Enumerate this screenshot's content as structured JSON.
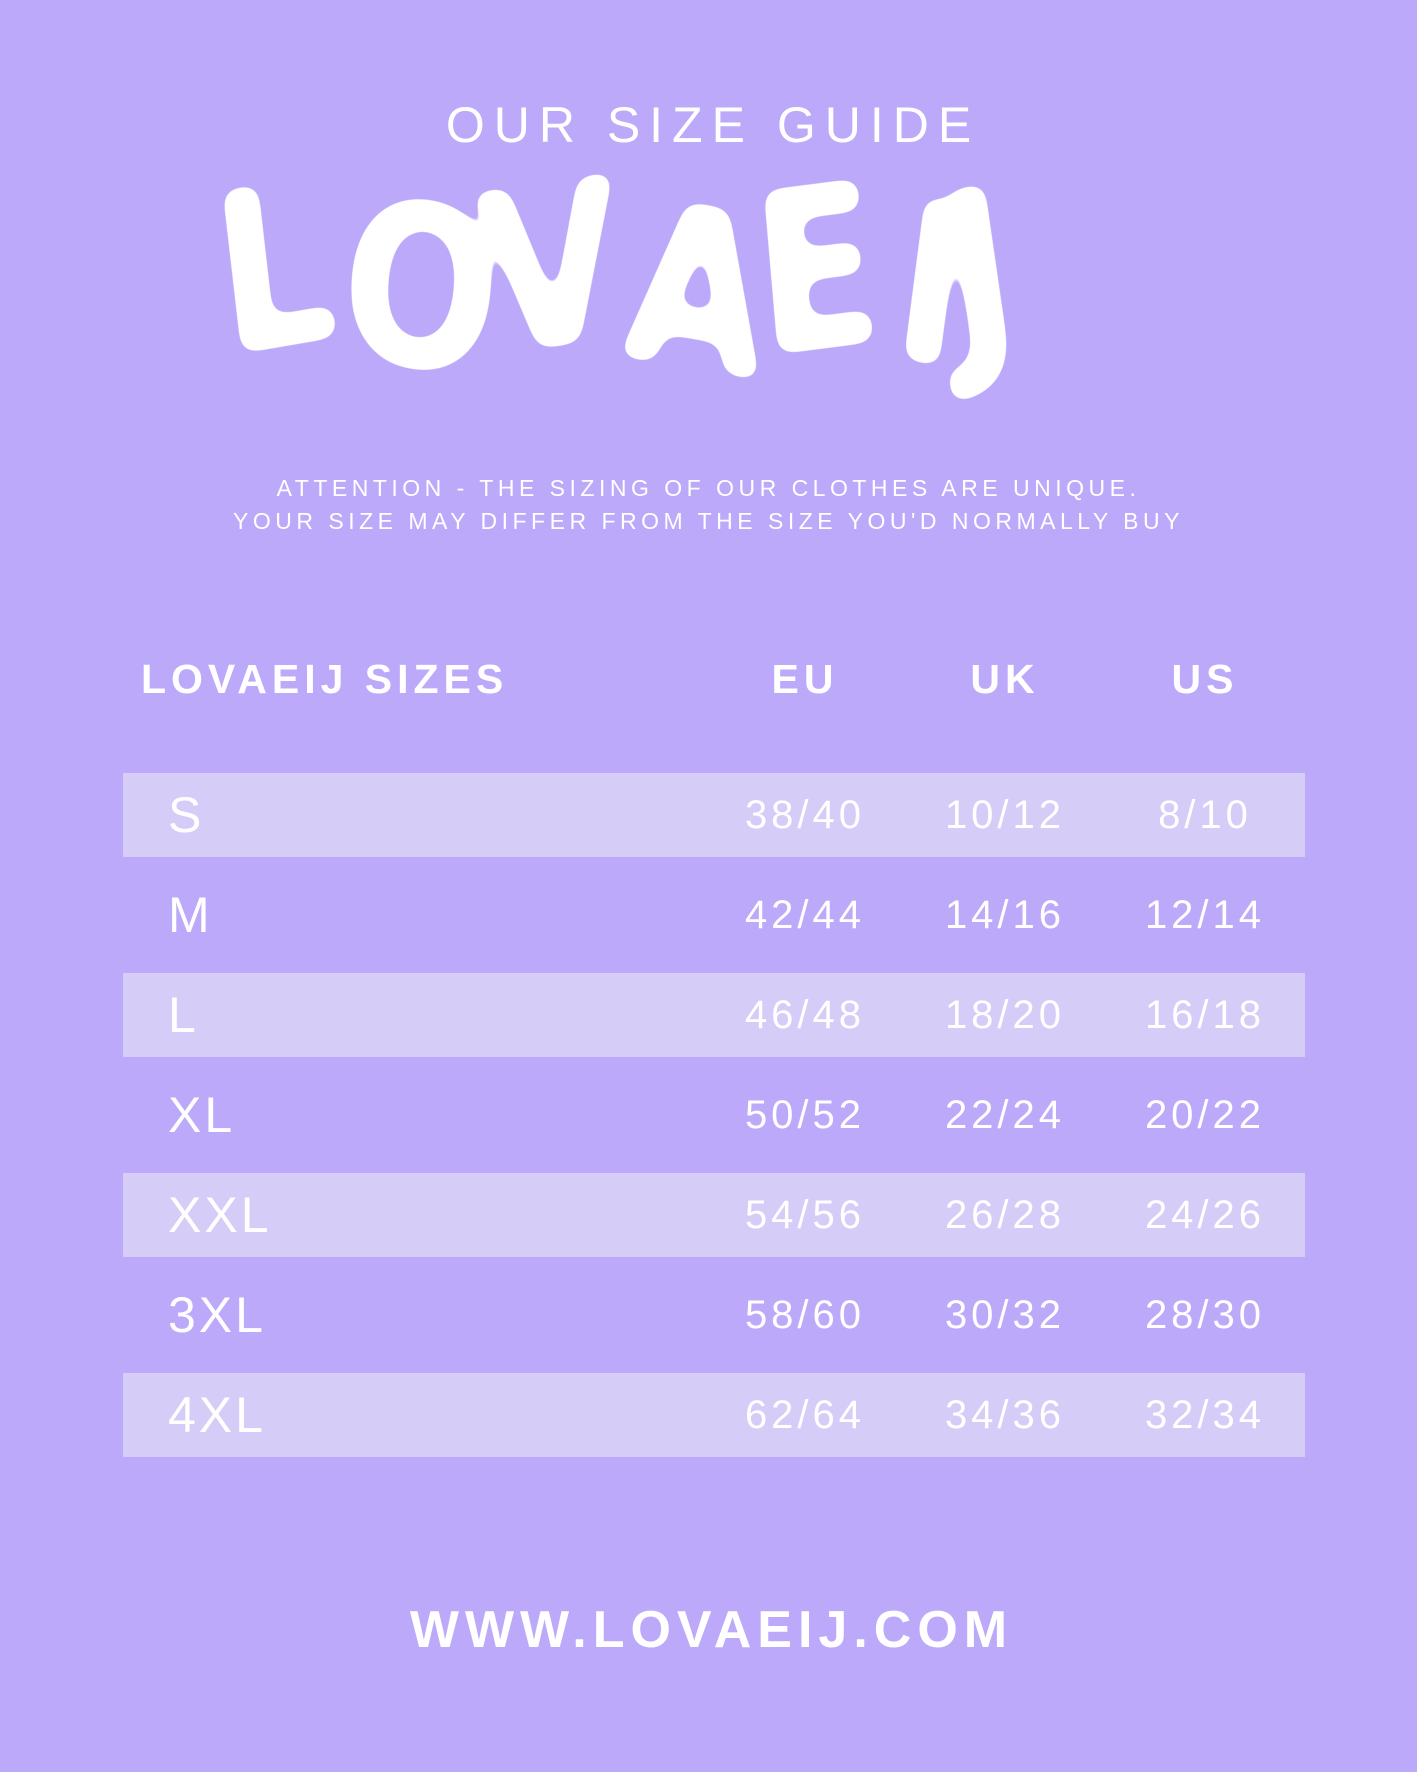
{
  "page": {
    "title": "OUR SIZE GUIDE",
    "logo_text": "LOVAEIJ",
    "attention_line1": "ATTENTION - THE SIZING OF OUR CLOTHES ARE UNIQUE.",
    "attention_line2": "YOUR SIZE MAY DIFFER FROM THE SIZE YOU'D NORMALLY BUY",
    "footer_url": "WWW.LOVAEIJ.COM"
  },
  "colors": {
    "background": "#bca9f9",
    "row_band": "#d6ccf8",
    "text": "#ffffff"
  },
  "size_table": {
    "headers": [
      "LOVAEIJ SIZES",
      "EU",
      "UK",
      "US"
    ],
    "rows": [
      {
        "label": "S",
        "eu": "38/40",
        "uk": "10/12",
        "us": "8/10",
        "highlighted": true
      },
      {
        "label": "M",
        "eu": "42/44",
        "uk": "14/16",
        "us": "12/14",
        "highlighted": false
      },
      {
        "label": "L",
        "eu": "46/48",
        "uk": "18/20",
        "us": "16/18",
        "highlighted": true
      },
      {
        "label": "XL",
        "eu": "50/52",
        "uk": "22/24",
        "us": "20/22",
        "highlighted": false
      },
      {
        "label": "XXL",
        "eu": "54/56",
        "uk": "26/28",
        "us": "24/26",
        "highlighted": true
      },
      {
        "label": "3XL",
        "eu": "58/60",
        "uk": "30/32",
        "us": "28/30",
        "highlighted": false
      },
      {
        "label": "4XL",
        "eu": "62/64",
        "uk": "34/36",
        "us": "32/34",
        "highlighted": true
      }
    ]
  }
}
